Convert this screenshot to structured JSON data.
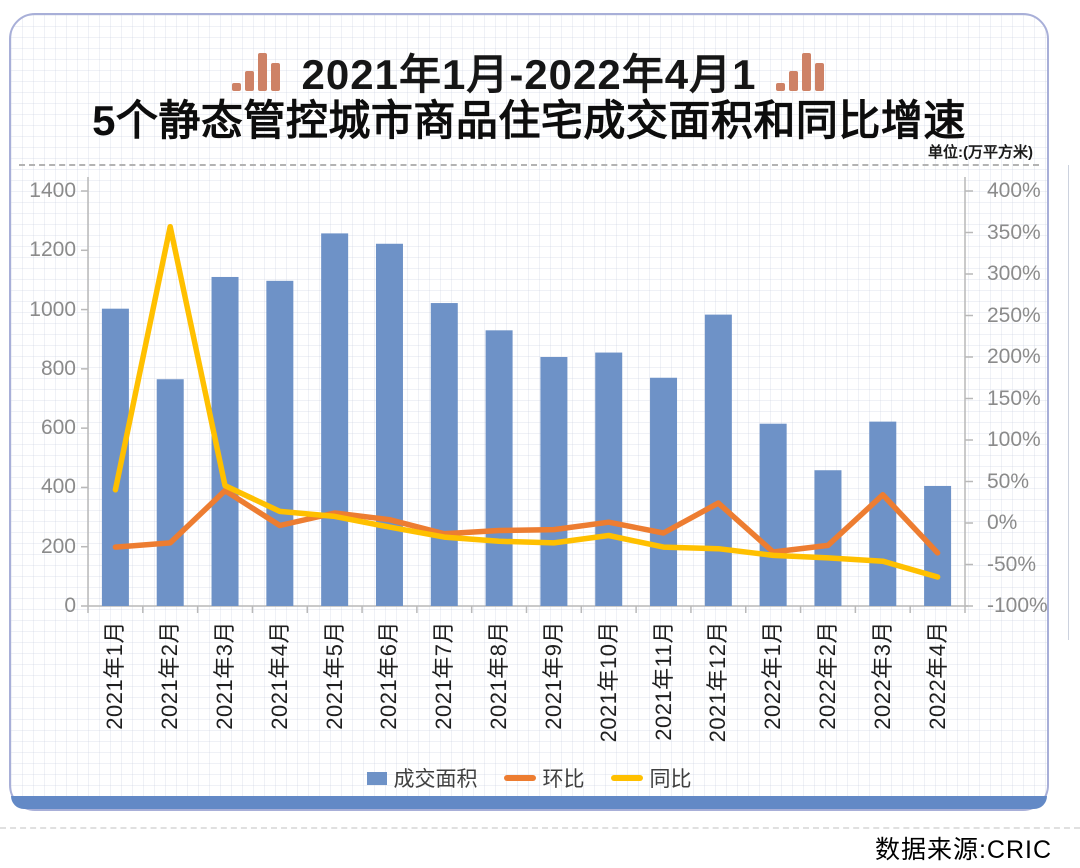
{
  "page": {
    "source_note": "数据来源:CRIC"
  },
  "card": {
    "title_line1": "2021年1月-2022年4月1",
    "title_line2": "5个静态管控城市商品住宅成交面积和同比增速",
    "unit_label": "单位:(万平方米)",
    "icon_color": "#CE8266",
    "bottom_bar_color": "#6389C6",
    "border_color": "#A8AFD8"
  },
  "legend": [
    {
      "label": "成交面积",
      "type": "bar",
      "color": "#6E92C7"
    },
    {
      "label": "环比",
      "type": "line",
      "color": "#ED7D31"
    },
    {
      "label": "同比",
      "type": "line",
      "color": "#FFC000"
    }
  ],
  "chart_data": {
    "type": "bar+line combo, dual axis",
    "categories": [
      "2021年1月",
      "2021年2月",
      "2021年3月",
      "2021年4月",
      "2021年5月",
      "2021年6月",
      "2021年7月",
      "2021年8月",
      "2021年9月",
      "2021年10月",
      "2021年11月",
      "2021年12月",
      "2022年1月",
      "2022年2月",
      "2022年3月",
      "2022年4月"
    ],
    "series": [
      {
        "name": "成交面积",
        "type": "bar",
        "axis": "left",
        "color": "#6E92C7",
        "values": [
          1003,
          765,
          1110,
          1097,
          1257,
          1222,
          1022,
          930,
          840,
          855,
          770,
          983,
          615,
          458,
          622,
          405
        ]
      },
      {
        "name": "环比",
        "type": "line",
        "axis": "right",
        "color": "#ED7D31",
        "values": [
          -29,
          -24,
          39,
          -3,
          12,
          4,
          -13,
          -9,
          -8,
          1,
          -12,
          24,
          -35,
          -27,
          34,
          -36
        ]
      },
      {
        "name": "同比",
        "type": "line",
        "axis": "right",
        "color": "#FFC000",
        "values": [
          40,
          357,
          45,
          14,
          8,
          -5,
          -17,
          -22,
          -24,
          -15,
          -29,
          -31,
          -39,
          -42,
          -46,
          -65
        ]
      }
    ],
    "left_axis": {
      "min": 0,
      "max": 1400,
      "step": 200,
      "labels": [
        "0",
        "200",
        "400",
        "600",
        "800",
        "1000",
        "1200",
        "1400"
      ]
    },
    "right_axis": {
      "min": -100,
      "max": 400,
      "step": 50,
      "labels": [
        "-100%",
        "-50%",
        "0%",
        "50%",
        "100%",
        "150%",
        "200%",
        "250%",
        "300%",
        "350%",
        "400%"
      ]
    },
    "grid": "faint graph-paper texture",
    "legend_position": "bottom-center"
  }
}
